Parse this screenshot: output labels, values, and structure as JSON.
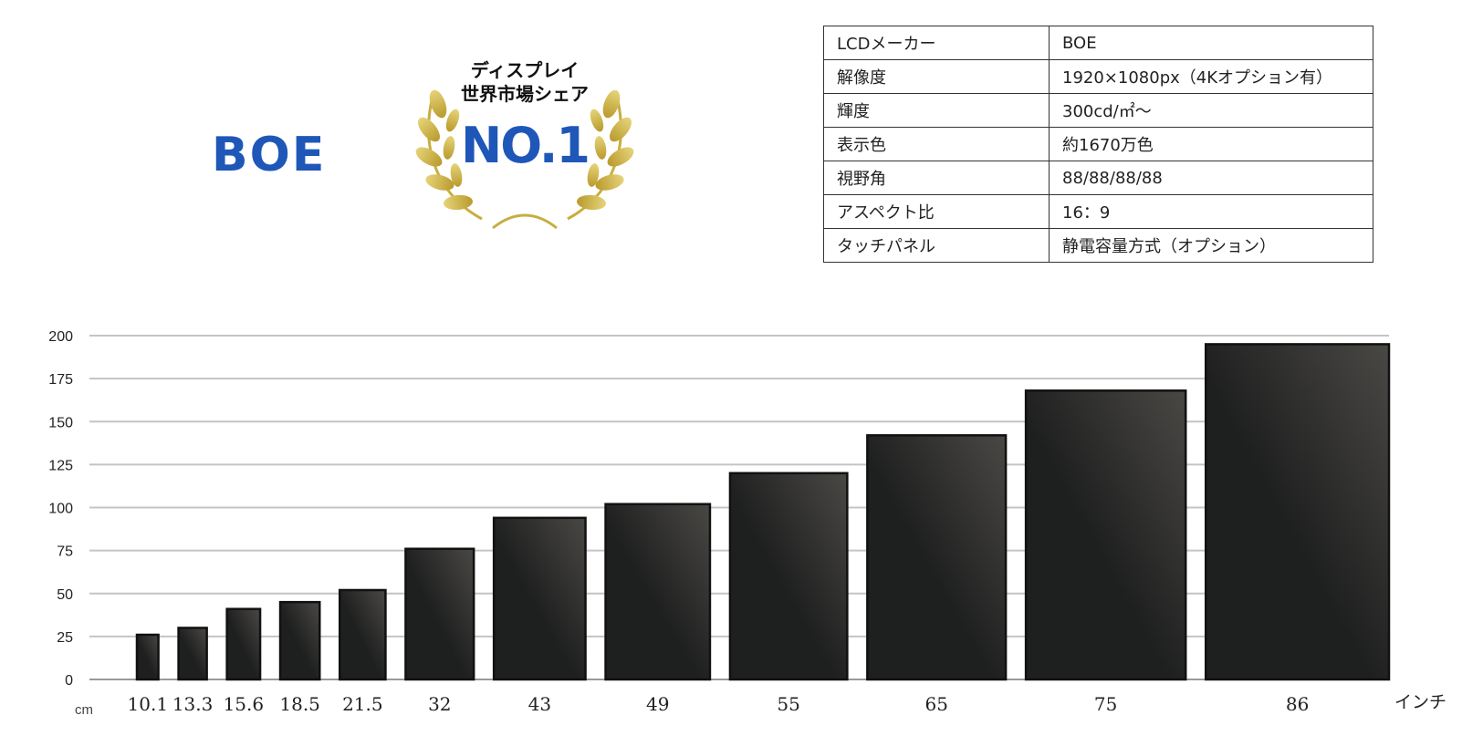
{
  "logo": {
    "text": "BOE",
    "color": "#1f57b8"
  },
  "badge": {
    "line1": "ディスプレイ",
    "line2": "世界市場シェア",
    "rank": "NO.1",
    "rank_color": "#1f57b8",
    "laurel_color": "#cdb84a"
  },
  "spec_table": [
    {
      "key": "LCDメーカー",
      "value": "BOE"
    },
    {
      "key": "解像度",
      "value": "1920×1080px（4Kオプション有）"
    },
    {
      "key": "輝度",
      "value": "300cd/㎡～"
    },
    {
      "key": "表示色",
      "value": "約1670万色"
    },
    {
      "key": "視野角",
      "value": "88/88/88/88"
    },
    {
      "key": "アスペクト比",
      "value": "16：9"
    },
    {
      "key": "タッチパネル",
      "value": "静電容量方式（オプション）"
    }
  ],
  "chart_data": {
    "type": "bar",
    "categories": [
      "10.1",
      "13.3",
      "15.6",
      "18.5",
      "21.5",
      "32",
      "43",
      "49",
      "55",
      "65",
      "75",
      "86"
    ],
    "values": [
      26,
      30,
      41,
      45,
      52,
      76,
      94,
      102,
      120,
      142,
      168,
      195
    ],
    "ylim": [
      0,
      200
    ],
    "yticks": [
      0,
      25,
      50,
      75,
      100,
      125,
      150,
      175,
      200
    ],
    "ylabel": "cm",
    "xlabel": "インチ",
    "grid": true,
    "bar_color": "#1e1f1f",
    "bar_highlight": "#4a4845"
  }
}
